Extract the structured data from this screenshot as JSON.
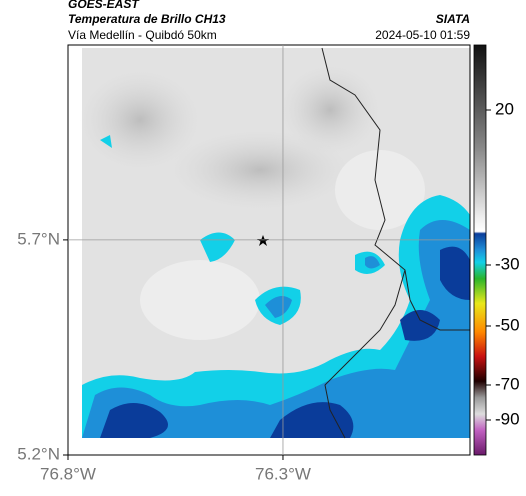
{
  "header": {
    "source": "GOES-EAST",
    "product": "Temperatura de Brillo CH13",
    "region": "Vía Medellín - Quibdó 50km",
    "agency": "SIATA",
    "timestamp": "2024-05-10 01:59"
  },
  "map": {
    "xlim": [
      -76.8,
      -75.865
    ],
    "ylim": [
      5.2,
      6.153
    ],
    "xticks": [
      {
        "value": -76.8,
        "label": "76.8°W"
      },
      {
        "value": -76.3,
        "label": "76.3°W"
      }
    ],
    "yticks": [
      {
        "value": 5.2,
        "label": "5.2°N"
      },
      {
        "value": 5.7,
        "label": "5.7°N"
      }
    ]
  },
  "colorbar": {
    "ticks": [
      20,
      -30,
      -50,
      -70,
      -90
    ]
  }
}
